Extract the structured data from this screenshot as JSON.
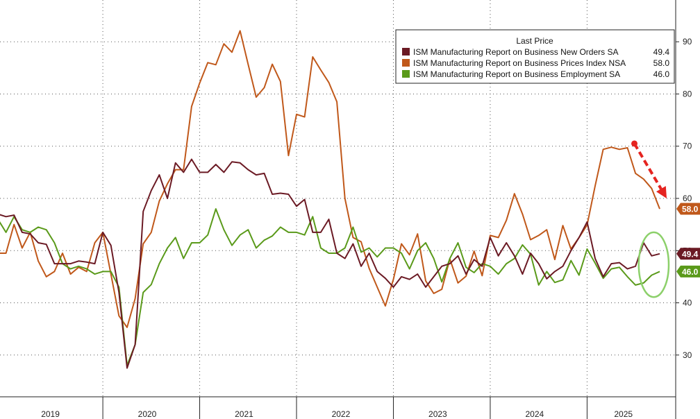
{
  "chart_data": {
    "type": "line",
    "title": "",
    "xlabel": "",
    "ylabel": "",
    "x_range": [
      "2018-12",
      "2025-10"
    ],
    "ylim": [
      22,
      98
    ],
    "yticks": [
      30,
      40,
      50,
      60,
      70,
      80,
      90
    ],
    "year_labels": [
      "2019",
      "2020",
      "2021",
      "2022",
      "2023",
      "2024",
      "2025"
    ],
    "grid": true,
    "legend": {
      "title": "Last Price",
      "placement": "top-right"
    },
    "colors": {
      "new_orders": "#6b1a24",
      "prices": "#c0581a",
      "employment": "#5a9a1a",
      "annotation_arrow": "#e52420",
      "annotation_ellipse": "#8cd06a"
    },
    "series": [
      {
        "key": "new_orders",
        "name": "ISM Manufacturing Report on Business New Orders SA",
        "last": "49.4",
        "points": [
          [
            "2018-12",
            57
          ],
          [
            "2019-01",
            56.5
          ],
          [
            "2019-02",
            56.8
          ],
          [
            "2019-03",
            53.5
          ],
          [
            "2019-04",
            53.2
          ],
          [
            "2019-05",
            51.5
          ],
          [
            "2019-06",
            51.2
          ],
          [
            "2019-07",
            47.5
          ],
          [
            "2019-08",
            47.5
          ],
          [
            "2019-09",
            47.5
          ],
          [
            "2019-10",
            48
          ],
          [
            "2019-11",
            47.8
          ],
          [
            "2019-12",
            47.5
          ],
          [
            "2020-01",
            53.5
          ],
          [
            "2020-02",
            51
          ],
          [
            "2020-03",
            42
          ],
          [
            "2020-04",
            27.5
          ],
          [
            "2020-05",
            32
          ],
          [
            "2020-06",
            57.5
          ],
          [
            "2020-07",
            61.5
          ],
          [
            "2020-08",
            64.5
          ],
          [
            "2020-09",
            60
          ],
          [
            "2020-10",
            66.8
          ],
          [
            "2020-11",
            65
          ],
          [
            "2020-12",
            67.5
          ],
          [
            "2021-01",
            65
          ],
          [
            "2021-02",
            65
          ],
          [
            "2021-03",
            66.5
          ],
          [
            "2021-04",
            65
          ],
          [
            "2021-05",
            67
          ],
          [
            "2021-06",
            66.8
          ],
          [
            "2021-07",
            65.5
          ],
          [
            "2021-08",
            64.5
          ],
          [
            "2021-09",
            64.8
          ],
          [
            "2021-10",
            60.8
          ],
          [
            "2021-11",
            61
          ],
          [
            "2021-12",
            60.8
          ],
          [
            "2022-01",
            58.5
          ],
          [
            "2022-02",
            59.8
          ],
          [
            "2022-03",
            53.5
          ],
          [
            "2022-04",
            53.5
          ],
          [
            "2022-05",
            56
          ],
          [
            "2022-06",
            49.5
          ],
          [
            "2022-07",
            48.5
          ],
          [
            "2022-08",
            51.3
          ],
          [
            "2022-09",
            47
          ],
          [
            "2022-10",
            49.5
          ],
          [
            "2022-11",
            46
          ],
          [
            "2022-12",
            44.7
          ],
          [
            "2023-01",
            43
          ],
          [
            "2023-02",
            45
          ],
          [
            "2023-03",
            44.5
          ],
          [
            "2023-04",
            45.5
          ],
          [
            "2023-05",
            43
          ],
          [
            "2023-06",
            45
          ],
          [
            "2023-07",
            47
          ],
          [
            "2023-08",
            47.5
          ],
          [
            "2023-09",
            49
          ],
          [
            "2023-10",
            45.5
          ],
          [
            "2023-11",
            48.3
          ],
          [
            "2023-12",
            47
          ],
          [
            "2024-01",
            52.5
          ],
          [
            "2024-02",
            49
          ],
          [
            "2024-03",
            51.5
          ],
          [
            "2024-04",
            49
          ],
          [
            "2024-05",
            45.5
          ],
          [
            "2024-06",
            49.5
          ],
          [
            "2024-07",
            47.5
          ],
          [
            "2024-08",
            44.6
          ],
          [
            "2024-09",
            46
          ],
          [
            "2024-10",
            47
          ],
          [
            "2024-11",
            50
          ],
          [
            "2024-12",
            52.5
          ],
          [
            "2025-01",
            55.5
          ],
          [
            "2025-02",
            48.5
          ],
          [
            "2025-03",
            45
          ],
          [
            "2025-04",
            47.5
          ],
          [
            "2025-05",
            47.7
          ],
          [
            "2025-06",
            46.5
          ],
          [
            "2025-07",
            47
          ],
          [
            "2025-08",
            51.5
          ],
          [
            "2025-09",
            49
          ],
          [
            "2025-10",
            49.4
          ]
        ]
      },
      {
        "key": "prices",
        "name": "ISM Manufacturing Report on Business Prices Index NSA",
        "last": "58.0",
        "points": [
          [
            "2018-12",
            49.5
          ],
          [
            "2019-01",
            49.5
          ],
          [
            "2019-02",
            55
          ],
          [
            "2019-03",
            50.5
          ],
          [
            "2019-04",
            53.5
          ],
          [
            "2019-05",
            48
          ],
          [
            "2019-06",
            45
          ],
          [
            "2019-07",
            46
          ],
          [
            "2019-08",
            49.5
          ],
          [
            "2019-09",
            45.5
          ],
          [
            "2019-10",
            46.8
          ],
          [
            "2019-11",
            46
          ],
          [
            "2019-12",
            51.5
          ],
          [
            "2020-01",
            53.5
          ],
          [
            "2020-02",
            45.5
          ],
          [
            "2020-03",
            37.5
          ],
          [
            "2020-04",
            35.3
          ],
          [
            "2020-05",
            40.8
          ],
          [
            "2020-06",
            51.3
          ],
          [
            "2020-07",
            53.5
          ],
          [
            "2020-08",
            59.5
          ],
          [
            "2020-09",
            62.8
          ],
          [
            "2020-10",
            65.5
          ],
          [
            "2020-11",
            65.5
          ],
          [
            "2020-12",
            77.6
          ],
          [
            "2021-01",
            82.1
          ],
          [
            "2021-02",
            86
          ],
          [
            "2021-03",
            85.6
          ],
          [
            "2021-04",
            89.6
          ],
          [
            "2021-05",
            88
          ],
          [
            "2021-06",
            92.1
          ],
          [
            "2021-07",
            85.7
          ],
          [
            "2021-08",
            79.4
          ],
          [
            "2021-09",
            81.2
          ],
          [
            "2021-10",
            85.7
          ],
          [
            "2021-11",
            82.4
          ],
          [
            "2021-12",
            68.2
          ],
          [
            "2022-01",
            76.1
          ],
          [
            "2022-02",
            75.6
          ],
          [
            "2022-03",
            87.1
          ],
          [
            "2022-04",
            84.6
          ],
          [
            "2022-05",
            82.2
          ],
          [
            "2022-06",
            78.5
          ],
          [
            "2022-07",
            60
          ],
          [
            "2022-08",
            52.5
          ],
          [
            "2022-09",
            51.7
          ],
          [
            "2022-10",
            46.6
          ],
          [
            "2022-11",
            43
          ],
          [
            "2022-12",
            39.4
          ],
          [
            "2023-01",
            44.5
          ],
          [
            "2023-02",
            51.3
          ],
          [
            "2023-03",
            49.2
          ],
          [
            "2023-04",
            53.2
          ],
          [
            "2023-05",
            44.2
          ],
          [
            "2023-06",
            41.8
          ],
          [
            "2023-07",
            42.6
          ],
          [
            "2023-08",
            48.4
          ],
          [
            "2023-09",
            43.8
          ],
          [
            "2023-10",
            45.1
          ],
          [
            "2023-11",
            49.9
          ],
          [
            "2023-12",
            45.2
          ],
          [
            "2024-01",
            52.9
          ],
          [
            "2024-02",
            52.5
          ],
          [
            "2024-03",
            55.8
          ],
          [
            "2024-04",
            60.9
          ],
          [
            "2024-05",
            57
          ],
          [
            "2024-06",
            52.1
          ],
          [
            "2024-07",
            52.9
          ],
          [
            "2024-08",
            54
          ],
          [
            "2024-09",
            48.3
          ],
          [
            "2024-10",
            54.8
          ],
          [
            "2024-11",
            50.3
          ],
          [
            "2024-12",
            52.5
          ],
          [
            "2025-01",
            54.9
          ],
          [
            "2025-02",
            62.4
          ],
          [
            "2025-03",
            69.4
          ],
          [
            "2025-04",
            69.8
          ],
          [
            "2025-05",
            69.4
          ],
          [
            "2025-06",
            69.7
          ],
          [
            "2025-07",
            64.8
          ],
          [
            "2025-08",
            63.7
          ],
          [
            "2025-09",
            61.9
          ],
          [
            "2025-10",
            58
          ]
        ]
      },
      {
        "key": "employment",
        "name": "ISM Manufacturing Report on Business Employment SA",
        "last": "46.0",
        "points": [
          [
            "2018-12",
            56
          ],
          [
            "2019-01",
            53.5
          ],
          [
            "2019-02",
            56.5
          ],
          [
            "2019-03",
            54
          ],
          [
            "2019-04",
            53.5
          ],
          [
            "2019-05",
            54.5
          ],
          [
            "2019-06",
            54
          ],
          [
            "2019-07",
            51.5
          ],
          [
            "2019-08",
            47.5
          ],
          [
            "2019-09",
            46.5
          ],
          [
            "2019-10",
            47
          ],
          [
            "2019-11",
            46.5
          ],
          [
            "2019-12",
            45.5
          ],
          [
            "2020-01",
            46
          ],
          [
            "2020-02",
            46
          ],
          [
            "2020-03",
            43
          ],
          [
            "2020-04",
            28
          ],
          [
            "2020-05",
            32
          ],
          [
            "2020-06",
            42
          ],
          [
            "2020-07",
            43.5
          ],
          [
            "2020-08",
            47.5
          ],
          [
            "2020-09",
            50.5
          ],
          [
            "2020-10",
            52.5
          ],
          [
            "2020-11",
            48.5
          ],
          [
            "2020-12",
            51.5
          ],
          [
            "2021-01",
            51.5
          ],
          [
            "2021-02",
            53
          ],
          [
            "2021-03",
            58
          ],
          [
            "2021-04",
            54
          ],
          [
            "2021-05",
            51
          ],
          [
            "2021-06",
            53
          ],
          [
            "2021-07",
            54
          ],
          [
            "2021-08",
            50.5
          ],
          [
            "2021-09",
            52
          ],
          [
            "2021-10",
            52.8
          ],
          [
            "2021-11",
            54.5
          ],
          [
            "2021-12",
            53.5
          ],
          [
            "2022-01",
            53.5
          ],
          [
            "2022-02",
            53
          ],
          [
            "2022-03",
            56.5
          ],
          [
            "2022-04",
            50.5
          ],
          [
            "2022-05",
            49.5
          ],
          [
            "2022-06",
            49.5
          ],
          [
            "2022-07",
            50.5
          ],
          [
            "2022-08",
            54.5
          ],
          [
            "2022-09",
            49.7
          ],
          [
            "2022-10",
            50.5
          ],
          [
            "2022-11",
            48.8
          ],
          [
            "2022-12",
            50.5
          ],
          [
            "2023-01",
            50.5
          ],
          [
            "2023-02",
            49.5
          ],
          [
            "2023-03",
            46.5
          ],
          [
            "2023-04",
            50
          ],
          [
            "2023-05",
            51.5
          ],
          [
            "2023-06",
            48.5
          ],
          [
            "2023-07",
            44
          ],
          [
            "2023-08",
            48.5
          ],
          [
            "2023-09",
            51.5
          ],
          [
            "2023-10",
            46.8
          ],
          [
            "2023-11",
            45.8
          ],
          [
            "2023-12",
            47.5
          ],
          [
            "2024-01",
            47
          ],
          [
            "2024-02",
            45.5
          ],
          [
            "2024-03",
            47.5
          ],
          [
            "2024-04",
            48.5
          ],
          [
            "2024-05",
            51.1
          ],
          [
            "2024-06",
            49.3
          ],
          [
            "2024-07",
            43.4
          ],
          [
            "2024-08",
            46
          ],
          [
            "2024-09",
            43.9
          ],
          [
            "2024-10",
            44.4
          ],
          [
            "2024-11",
            48.1
          ],
          [
            "2024-12",
            45.3
          ],
          [
            "2025-01",
            50.3
          ],
          [
            "2025-02",
            47.6
          ],
          [
            "2025-03",
            44.7
          ],
          [
            "2025-04",
            46.5
          ],
          [
            "2025-05",
            46.8
          ],
          [
            "2025-06",
            45
          ],
          [
            "2025-07",
            43.4
          ],
          [
            "2025-08",
            43.8
          ],
          [
            "2025-09",
            45.3
          ],
          [
            "2025-10",
            46
          ]
        ]
      }
    ],
    "annotations": [
      {
        "kind": "arrow",
        "from": [
          "2025-06",
          70.5
        ],
        "to": [
          "2025-10",
          60
        ]
      },
      {
        "kind": "ellipse",
        "center": [
          "2025-09",
          47.3
        ],
        "x_half_months": 1.6,
        "y_half": 6.2
      }
    ]
  }
}
